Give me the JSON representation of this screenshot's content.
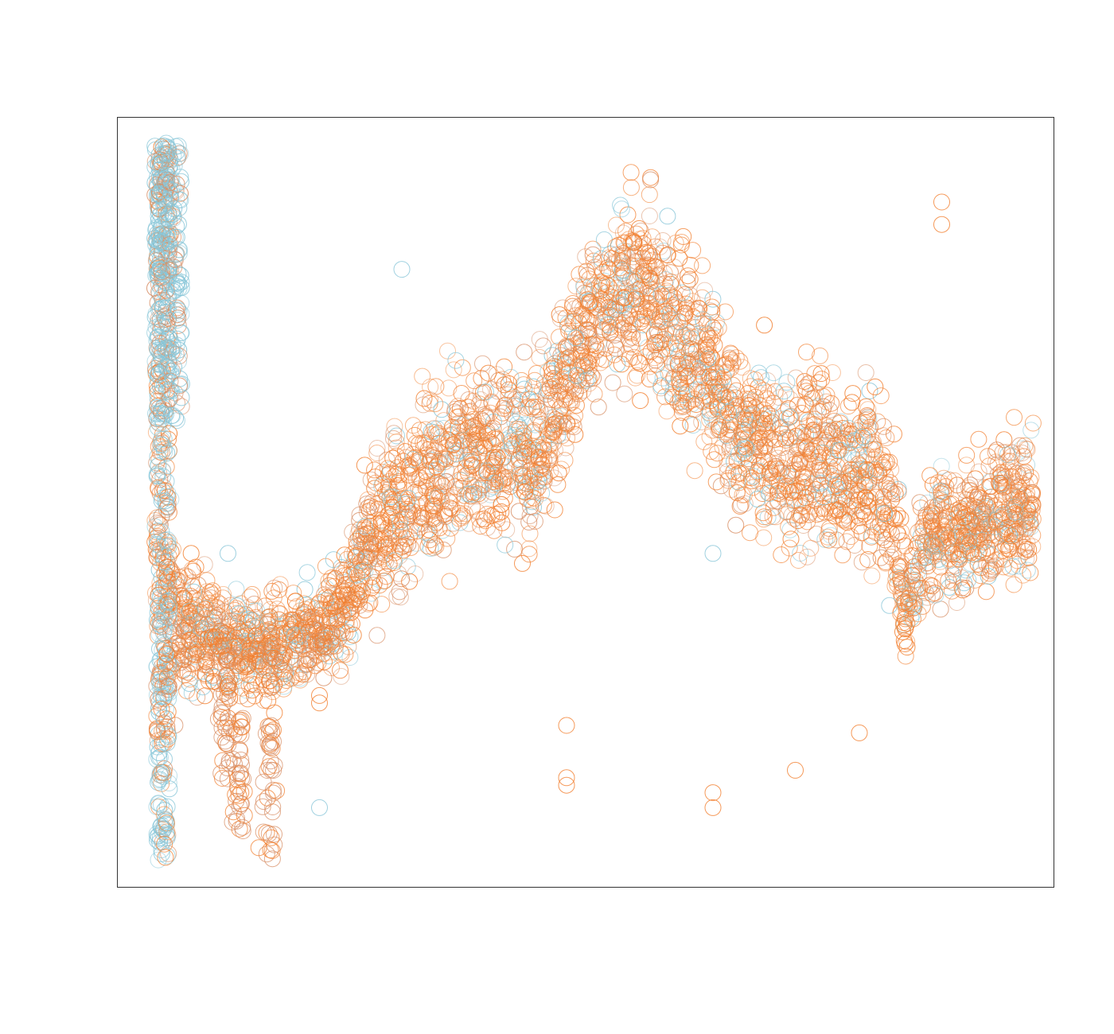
{
  "chart_data": {
    "type": "scatter",
    "title": "",
    "xlabel": "",
    "ylabel": "",
    "xlim": [
      0,
      100
    ],
    "ylim": [
      0,
      100
    ],
    "grid": false,
    "legend": "none",
    "marker": "open-circle",
    "colors": [
      "#f28030",
      "#88c6d8",
      "#d89068"
    ],
    "trend": {
      "x": [
        3,
        4,
        5,
        6,
        8,
        10,
        12,
        15,
        18,
        21,
        24,
        27,
        30,
        33,
        36,
        39,
        42,
        45,
        48,
        51,
        54,
        57,
        60,
        63,
        66,
        69,
        72,
        75,
        78,
        81,
        84,
        85,
        87,
        88,
        90,
        93,
        96,
        99
      ],
      "y": [
        50,
        40,
        36,
        33,
        33,
        31,
        31,
        30,
        31,
        32,
        36,
        46,
        49,
        54,
        56,
        57,
        56,
        56,
        66,
        75,
        78,
        78,
        72,
        68,
        60,
        58,
        55,
        56,
        53,
        54,
        47,
        33,
        45,
        46,
        45,
        47,
        49,
        50
      ],
      "spread": [
        22,
        13,
        10,
        8,
        7,
        6,
        6,
        6,
        6,
        6,
        7,
        9,
        10,
        10,
        10,
        11,
        10,
        10,
        10,
        9,
        10,
        10,
        10,
        11,
        10,
        10,
        10,
        10,
        9,
        10,
        10,
        6,
        7,
        8,
        7,
        8,
        8,
        8
      ]
    },
    "blue_cluster": {
      "x": [
        3,
        6
      ],
      "y": [
        60,
        98
      ]
    },
    "outliers": [
      [
        48,
        20
      ],
      [
        48,
        13
      ],
      [
        48,
        12
      ],
      [
        64,
        9
      ],
      [
        64,
        11
      ],
      [
        64,
        43
      ],
      [
        80,
        19
      ],
      [
        11,
        43
      ],
      [
        11,
        21
      ],
      [
        12,
        36
      ],
      [
        12,
        28
      ],
      [
        21,
        24
      ],
      [
        21,
        23
      ],
      [
        21,
        9
      ],
      [
        74,
        66
      ],
      [
        85,
        44
      ],
      [
        89,
        90
      ],
      [
        89,
        87
      ],
      [
        73,
        14
      ],
      [
        30,
        81
      ]
    ]
  }
}
